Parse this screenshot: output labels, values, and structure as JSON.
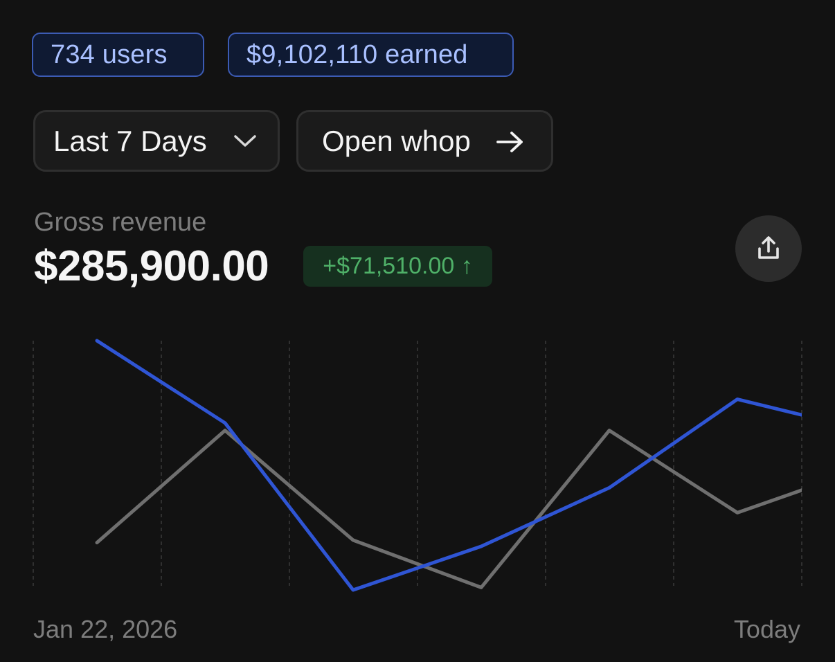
{
  "badges": {
    "users": "734 users",
    "earned": "$9,102,110 earned"
  },
  "controls": {
    "range_label": "Last 7 Days",
    "range_icon": "chevron-down-icon",
    "open_label": "Open whop",
    "open_icon": "arrow-right-icon"
  },
  "metric": {
    "label": "Gross revenue",
    "value": "$285,900.00",
    "delta": "+$71,510.00 ↑",
    "delta_color": "#4fb068"
  },
  "share": {
    "icon": "share-upload-icon"
  },
  "colors": {
    "background": "#121212",
    "current_series": "#2f55d4",
    "previous_series": "#6f6f6f",
    "grid": "#3a3a3a"
  },
  "chart_data": {
    "type": "line",
    "x": [
      1,
      2,
      3,
      4,
      5,
      6,
      7
    ],
    "series": [
      {
        "values": [
          100,
          67,
          0,
          17.5,
          41,
          76.5,
          64
        ]
      },
      {
        "values": [
          19,
          64,
          20,
          1,
          64,
          31,
          49
        ]
      }
    ],
    "ylim": [
      0,
      100
    ],
    "grid": "vertical-dashed",
    "x_start_label": "Jan 22, 2026",
    "x_end_label": "Today"
  }
}
